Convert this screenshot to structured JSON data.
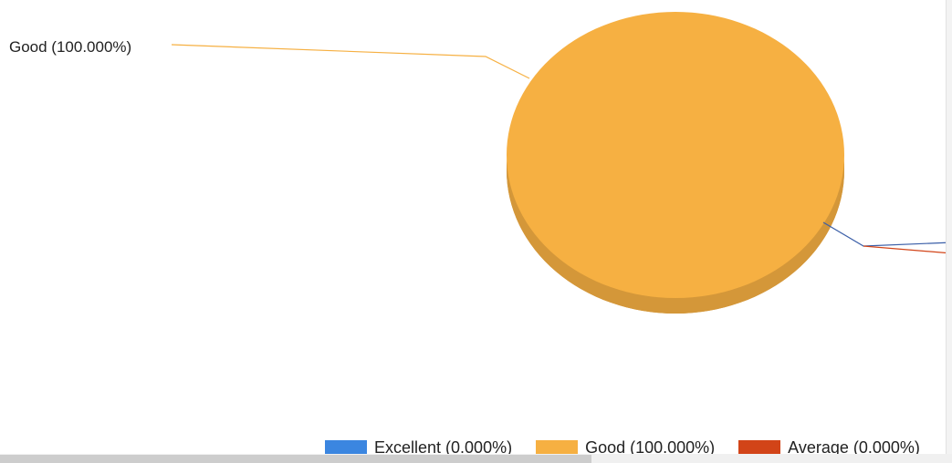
{
  "chart_data": {
    "type": "pie",
    "title": "",
    "three_d": true,
    "slices": [
      {
        "label": "Excellent",
        "value": 0.0,
        "percent_label": "Excellent (0.000%)",
        "color": "#3b86e0"
      },
      {
        "label": "Good",
        "value": 100.0,
        "percent_label": "Good (100.000%)",
        "color": "#f6b042"
      },
      {
        "label": "Average",
        "value": 0.0,
        "percent_label": "Average (0.000%)",
        "color": "#d24418"
      }
    ],
    "data_labels": [
      "Good (100.000%)"
    ],
    "legend": {
      "position": "bottom",
      "items": [
        "Excellent (0.000%)",
        "Good (100.000%)",
        "Average (0.000%)"
      ]
    }
  }
}
